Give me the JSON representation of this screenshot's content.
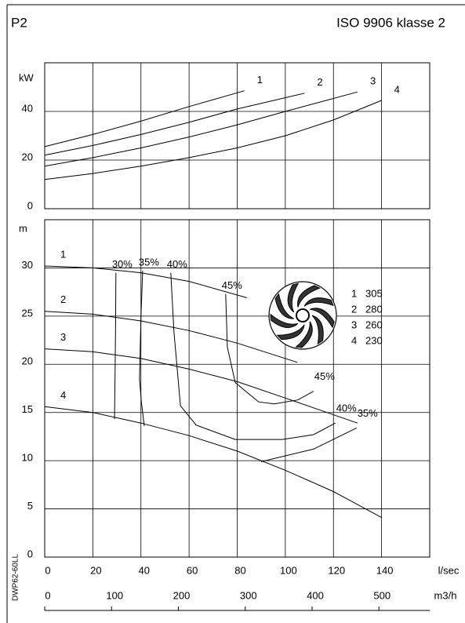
{
  "page": {
    "title": "P2",
    "standard": "ISO 9906 klasse 2",
    "drawing_id": "DWP62-60LL"
  },
  "chart_data": [
    {
      "type": "line",
      "y_label": "kW",
      "xlim": [
        0,
        160
      ],
      "ylim": [
        0,
        60
      ],
      "xticks": [
        0,
        20,
        40,
        60,
        80,
        100,
        120,
        140
      ],
      "yticks": [
        0,
        20,
        40
      ],
      "grid": true,
      "series": [
        {
          "name": "1",
          "color": "#000000",
          "x": [
            0,
            20,
            40,
            60,
            83
          ],
          "values": [
            25.5,
            30.5,
            36,
            42,
            48.5
          ]
        },
        {
          "name": "2",
          "color": "#000000",
          "x": [
            0,
            20,
            40,
            60,
            80,
            108
          ],
          "values": [
            22,
            26,
            30.5,
            35.5,
            41,
            47.5
          ]
        },
        {
          "name": "3",
          "color": "#000000",
          "x": [
            0,
            20,
            40,
            60,
            80,
            100,
            130
          ],
          "values": [
            17.5,
            21,
            25,
            29.5,
            34.5,
            40,
            48
          ]
        },
        {
          "name": "4",
          "color": "#000000",
          "x": [
            0,
            20,
            40,
            60,
            80,
            100,
            120,
            140
          ],
          "values": [
            12,
            14.5,
            17.5,
            21,
            25,
            30,
            36.5,
            44.5
          ]
        }
      ]
    },
    {
      "type": "line",
      "y_label": "m",
      "x_label": "l/sec",
      "x2_label": "m3/h",
      "xlim": [
        0,
        160
      ],
      "ylim": [
        0,
        35
      ],
      "xticks": [
        0,
        20,
        40,
        60,
        80,
        100,
        120,
        140
      ],
      "yticks": [
        0,
        5,
        10,
        15,
        20,
        25,
        30
      ],
      "x2lim": [
        0,
        576
      ],
      "x2ticks": [
        0,
        100,
        200,
        300,
        400,
        500
      ],
      "grid": true,
      "series": [
        {
          "name": "1",
          "color": "#000000",
          "x": [
            0,
            20,
            40,
            60,
            84
          ],
          "values": [
            30.2,
            30,
            29.5,
            28.6,
            26.9
          ]
        },
        {
          "name": "2",
          "color": "#000000",
          "x": [
            0,
            20,
            40,
            60,
            80,
            105
          ],
          "values": [
            25.5,
            25.2,
            24.5,
            23.5,
            22.2,
            20.2
          ]
        },
        {
          "name": "3",
          "color": "#000000",
          "x": [
            0,
            20,
            40,
            60,
            80,
            100,
            130
          ],
          "values": [
            21.6,
            21.3,
            20.6,
            19.5,
            18.2,
            16.5,
            13.9
          ]
        },
        {
          "name": "4",
          "color": "#000000",
          "x": [
            0,
            20,
            40,
            60,
            80,
            100,
            120,
            140
          ],
          "values": [
            15.6,
            15,
            13.9,
            12.6,
            11,
            9,
            6.8,
            4.1
          ]
        }
      ],
      "efficiency": [
        {
          "name": "30%",
          "color": "#000000",
          "x": [
            29.6,
            29.5,
            29.3,
            29
          ],
          "values": [
            29.5,
            25,
            20,
            14.3
          ]
        },
        {
          "name": "35%",
          "color": "#000000",
          "x": [
            40.7,
            40,
            39.4,
            40.2,
            41.4,
            null,
            89.9,
            111.7,
            129.6
          ],
          "values": [
            29.7,
            25,
            18.5,
            16,
            13.6,
            null,
            9.9,
            11.2,
            13.4
          ]
        },
        {
          "name": "40%",
          "color": "#000000",
          "x": [
            52.4,
            53.7,
            56.4,
            62.9,
            79.2,
            98.7,
            111.7,
            120.8
          ],
          "values": [
            29.5,
            23.4,
            15.7,
            13.7,
            12.2,
            12.2,
            12.7,
            13.9
          ]
        },
        {
          "name": "45%",
          "color": "#000000",
          "x": [
            75.2,
            75.9,
            79.2,
            88.9,
            95.4,
            105.2,
            111.7
          ],
          "values": [
            27.3,
            21.8,
            18.1,
            16.1,
            15.9,
            16.3,
            17.2
          ]
        }
      ],
      "impellers": [
        [
          "1",
          305
        ],
        [
          "2",
          280
        ],
        [
          "3",
          260
        ],
        [
          "4",
          230
        ]
      ]
    }
  ]
}
